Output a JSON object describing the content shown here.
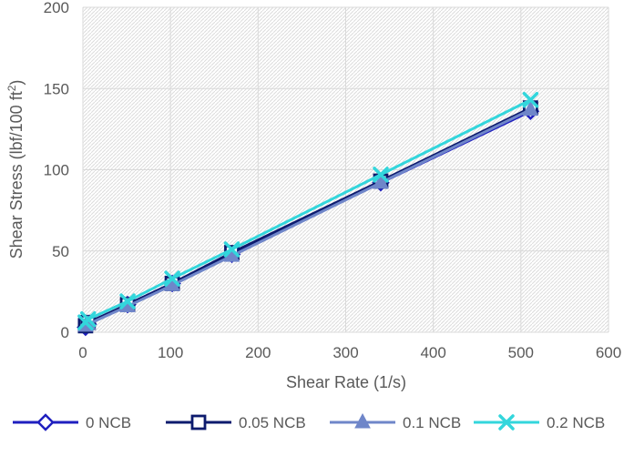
{
  "chart_data": {
    "type": "line",
    "title": "",
    "xlabel": "Shear Rate (1/s)",
    "ylabel_main": "Shear Stress (lbf/100 ft",
    "ylabel_sup": "2",
    "ylabel_end": ")",
    "xlim": [
      0,
      600
    ],
    "ylim": [
      0,
      200
    ],
    "x_ticks": [
      0,
      100,
      200,
      300,
      400,
      500,
      600
    ],
    "y_ticks": [
      0,
      50,
      100,
      150,
      200
    ],
    "grid": true,
    "legend_position": "bottom",
    "x": [
      3,
      6,
      51,
      102,
      170,
      340,
      511
    ],
    "series": [
      {
        "name": "0 NCB",
        "color": "#1f1fbf",
        "marker": "diamond",
        "values": [
          3,
          5,
          17,
          30,
          48,
          92,
          136
        ]
      },
      {
        "name": "0.05 NCB",
        "color": "#0d1b6e",
        "marker": "square",
        "values": [
          4,
          6,
          17,
          30,
          49,
          93,
          138
        ]
      },
      {
        "name": "0.1 NCB",
        "color": "#6f86c9",
        "marker": "triangle",
        "values": [
          4,
          5,
          16,
          29,
          47,
          92,
          137
        ]
      },
      {
        "name": "0.2 NCB",
        "color": "#33d6dc",
        "marker": "x",
        "values": [
          6,
          8,
          19,
          33,
          51,
          97,
          143
        ]
      }
    ]
  }
}
